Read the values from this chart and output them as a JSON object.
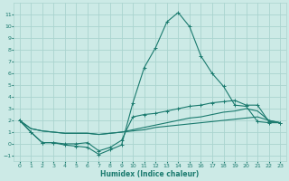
{
  "xlabel": "Humidex (Indice chaleur)",
  "x_values": [
    0,
    1,
    2,
    3,
    4,
    5,
    6,
    7,
    8,
    9,
    10,
    11,
    12,
    13,
    14,
    15,
    16,
    17,
    18,
    19,
    20,
    21,
    22,
    23
  ],
  "line1_y": [
    2.0,
    1.0,
    0.1,
    0.1,
    -0.1,
    -0.2,
    -0.3,
    -0.9,
    -0.5,
    -0.1,
    3.5,
    6.5,
    8.2,
    10.4,
    11.2,
    10.0,
    7.5,
    6.0,
    4.9,
    3.3,
    3.2,
    1.9,
    1.8,
    1.8
  ],
  "line2_y": [
    2.0,
    1.0,
    0.1,
    0.1,
    0.0,
    0.0,
    0.1,
    -0.6,
    -0.3,
    0.3,
    2.3,
    2.5,
    2.6,
    2.8,
    3.0,
    3.2,
    3.3,
    3.5,
    3.6,
    3.7,
    3.3,
    3.3,
    1.9,
    1.8
  ],
  "line3_y": [
    2.0,
    1.3,
    1.1,
    1.0,
    0.9,
    0.9,
    0.9,
    0.8,
    0.9,
    1.0,
    1.2,
    1.4,
    1.6,
    1.8,
    2.0,
    2.2,
    2.3,
    2.5,
    2.7,
    2.8,
    3.0,
    2.8,
    2.0,
    1.8
  ],
  "line4_y": [
    2.0,
    1.3,
    1.1,
    1.0,
    0.9,
    0.9,
    0.9,
    0.8,
    0.9,
    1.0,
    1.1,
    1.2,
    1.4,
    1.5,
    1.6,
    1.7,
    1.8,
    1.9,
    2.0,
    2.1,
    2.2,
    2.3,
    2.0,
    1.8
  ],
  "line_color": "#1a7a6e",
  "bg_color": "#cceae6",
  "grid_color": "#aad4cf",
  "xlim": [
    -0.5,
    23.5
  ],
  "ylim": [
    -1.5,
    12
  ],
  "yticks": [
    -1,
    0,
    1,
    2,
    3,
    4,
    5,
    6,
    7,
    8,
    9,
    10,
    11
  ],
  "xticks": [
    0,
    1,
    2,
    3,
    4,
    5,
    6,
    7,
    8,
    9,
    10,
    11,
    12,
    13,
    14,
    15,
    16,
    17,
    18,
    19,
    20,
    21,
    22,
    23
  ]
}
